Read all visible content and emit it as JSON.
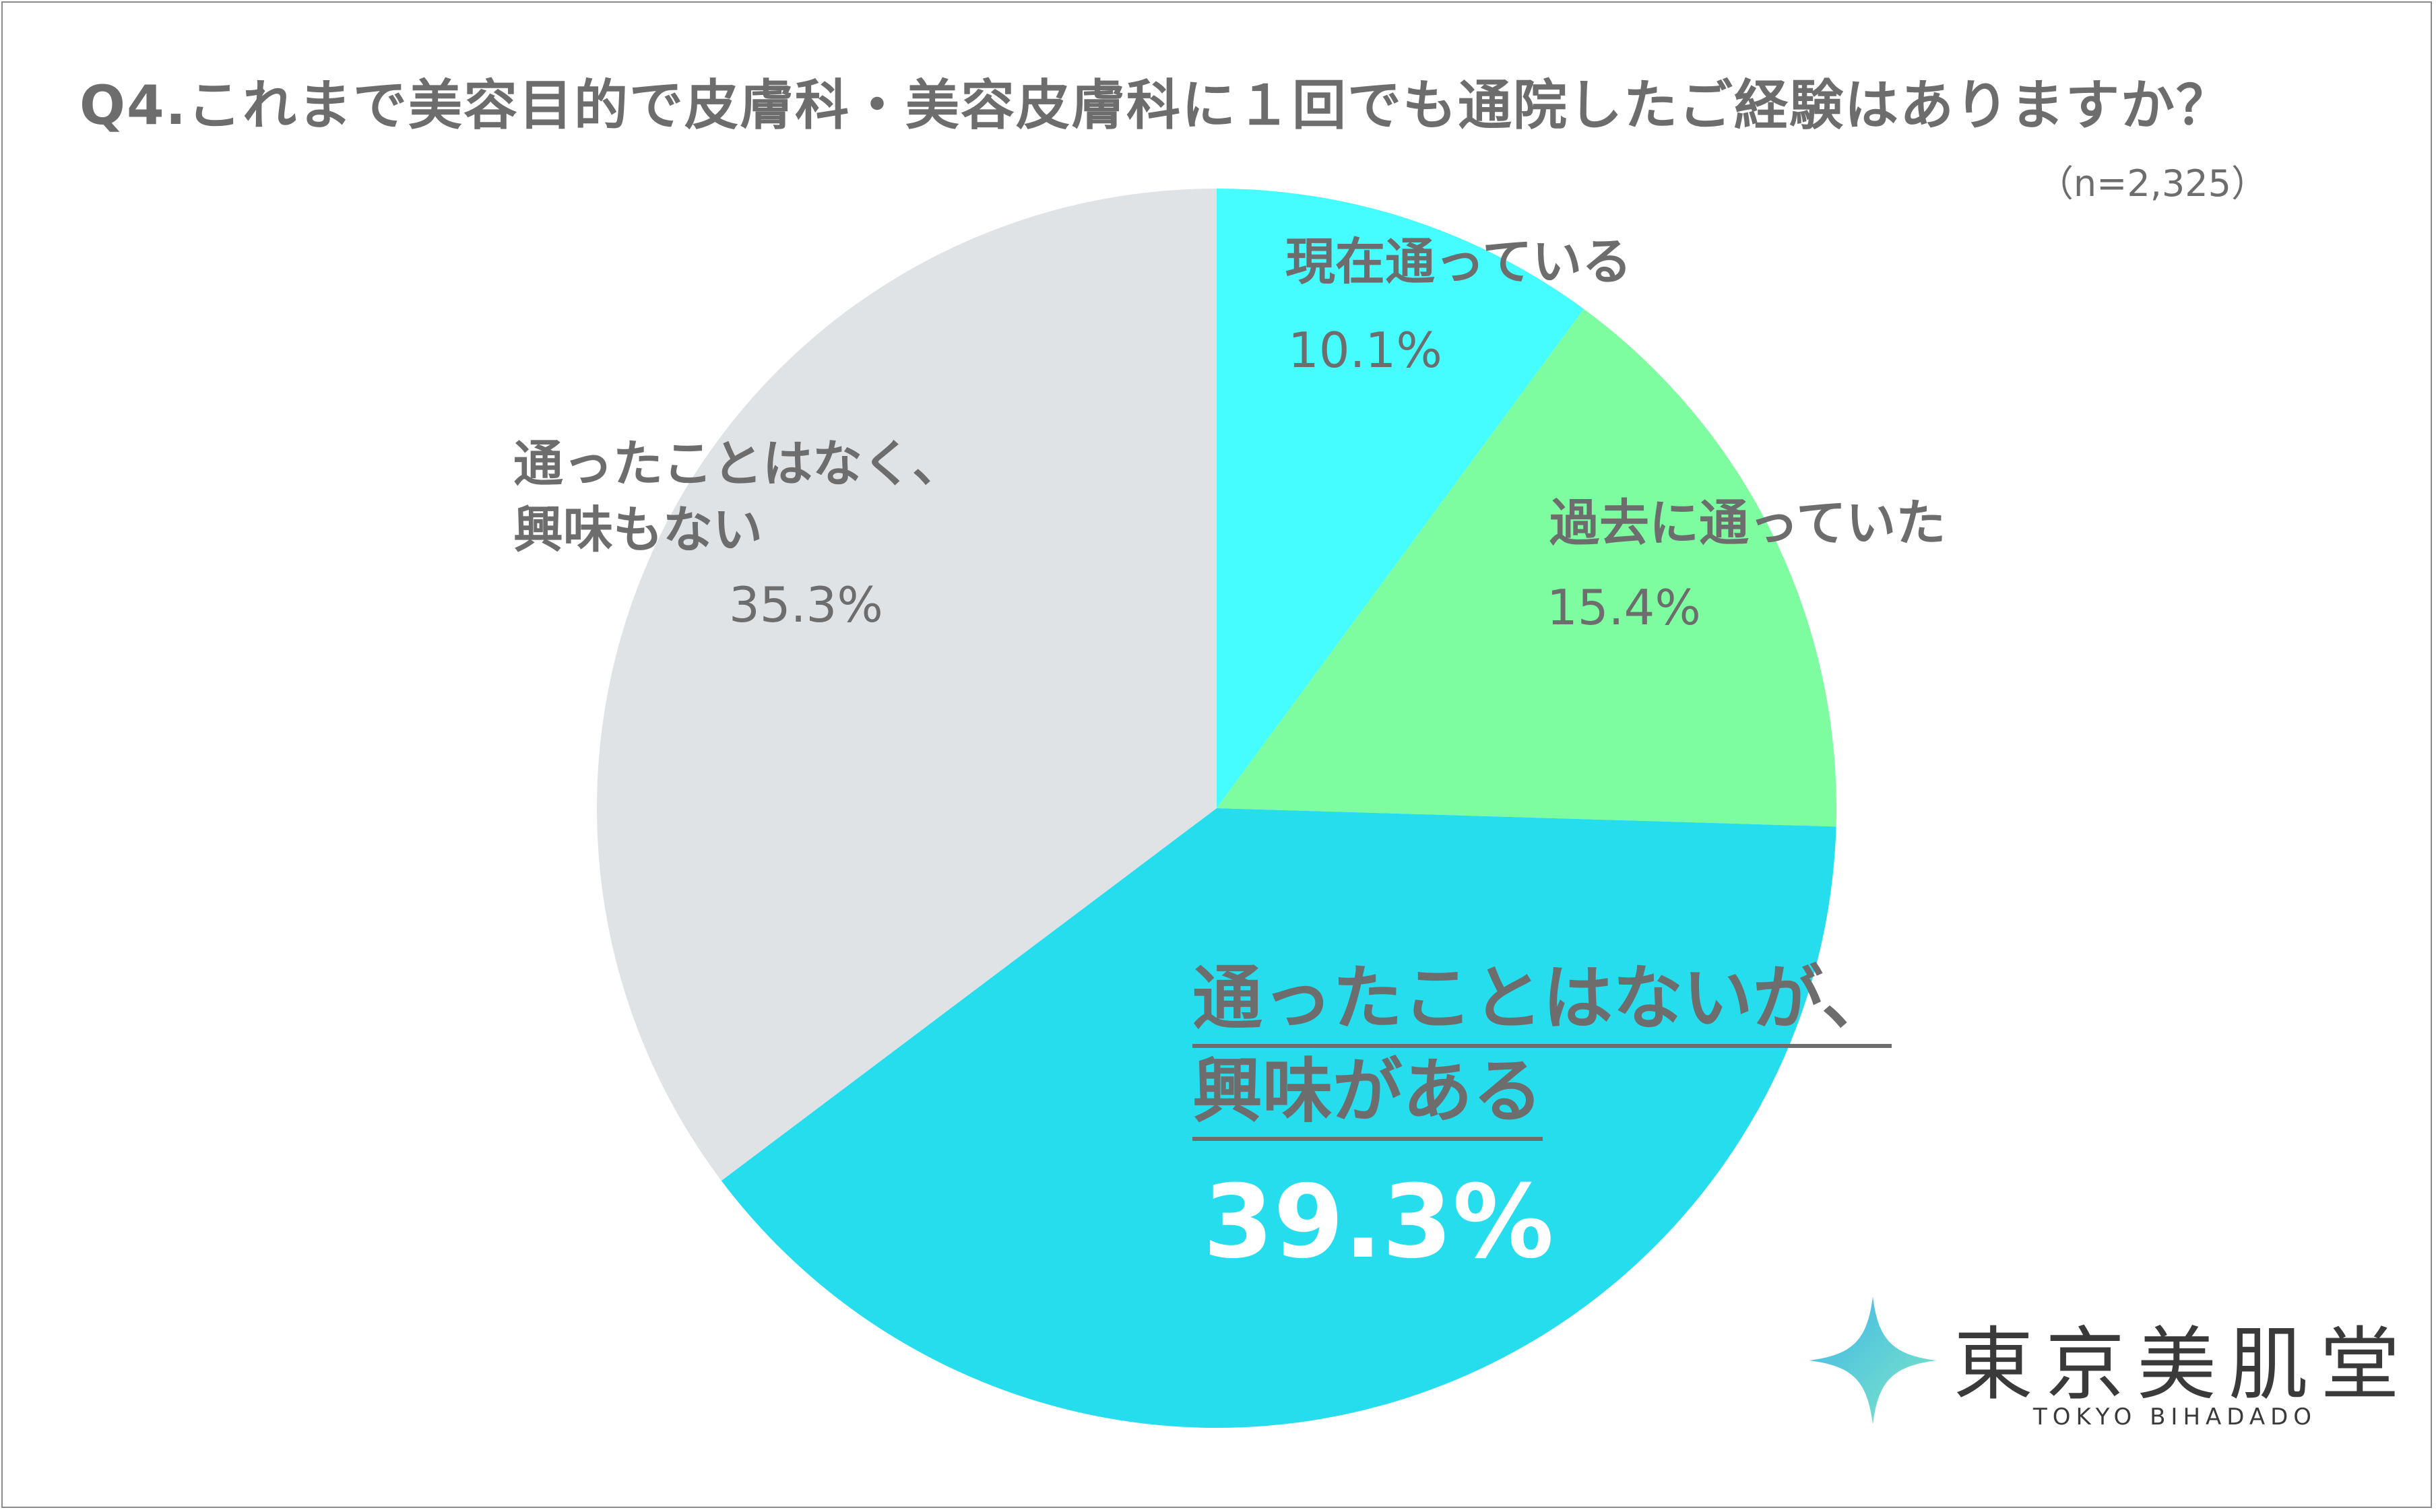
{
  "header": {
    "title": "Q4.これまで美容目的で皮膚科・美容皮膚科に１回でも通院したご経験はありますか？",
    "sample_size": "（n=2,325）"
  },
  "chart_data": {
    "type": "pie",
    "title": "Q4.これまで美容目的で皮膚科・美容皮膚科に１回でも通院したご経験はありますか？",
    "slices": [
      {
        "label": "現在通っている",
        "value": 10.1,
        "value_text": "10.1%",
        "color": "#45fdff"
      },
      {
        "label": "過去に通っていた",
        "value": 15.4,
        "value_text": "15.4%",
        "color": "#7dfd9f"
      },
      {
        "label": "通ったことはないが、興味がある",
        "label_lines": [
          "通ったことはないが、",
          "興味がある"
        ],
        "value": 39.3,
        "value_text": "39.3%",
        "color": "#25dded",
        "highlighted": true
      },
      {
        "label": "通ったことはなく、興味もない",
        "label_lines": [
          "通ったことはなく、",
          "興味もない"
        ],
        "value": 35.3,
        "value_text": "35.3%",
        "color": "#e0e3e6"
      }
    ],
    "start_angle_deg": 0,
    "direction": "clockwise",
    "legend": "none"
  },
  "logo": {
    "name_jp": "東京美肌堂",
    "name_en": "TOKYO BIHADADO",
    "accent_color": "#45c8e8",
    "icon": "sparkle-star-icon"
  }
}
